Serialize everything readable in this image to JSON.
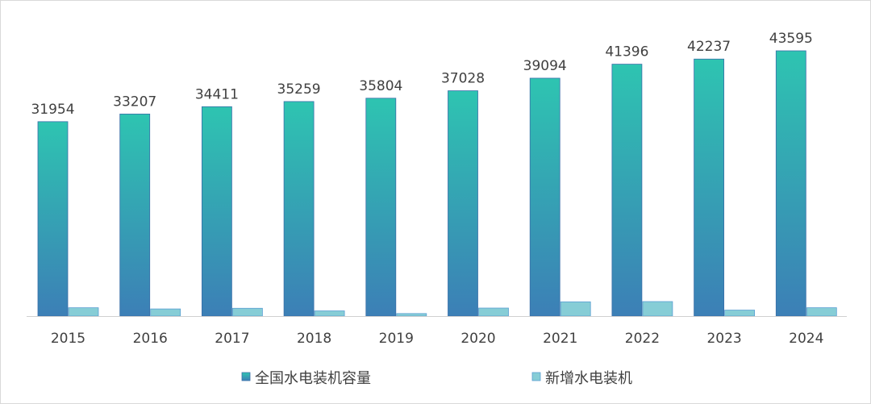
{
  "chart_data": {
    "type": "bar",
    "title": "",
    "xlabel": "",
    "ylabel": "",
    "categories": [
      "2015",
      "2016",
      "2017",
      "2018",
      "2019",
      "2020",
      "2021",
      "2022",
      "2023",
      "2024"
    ],
    "series": [
      {
        "name": "全国水电装机容量",
        "values": [
          31954,
          33207,
          34411,
          35259,
          35804,
          37028,
          39094,
          41396,
          42237,
          43595
        ],
        "color_top": "#2ec4b1",
        "color_bottom": "#3c7fb6",
        "data_labels": true
      },
      {
        "name": "新增水电装机",
        "values": [
          1375,
          1179,
          1287,
          859,
          417,
          1323,
          2349,
          2387,
          988,
          1378
        ],
        "color": "#86cdd6",
        "data_labels": false
      }
    ],
    "ylim": [
      0,
      45000
    ],
    "grid": false,
    "legend": "bottom"
  }
}
